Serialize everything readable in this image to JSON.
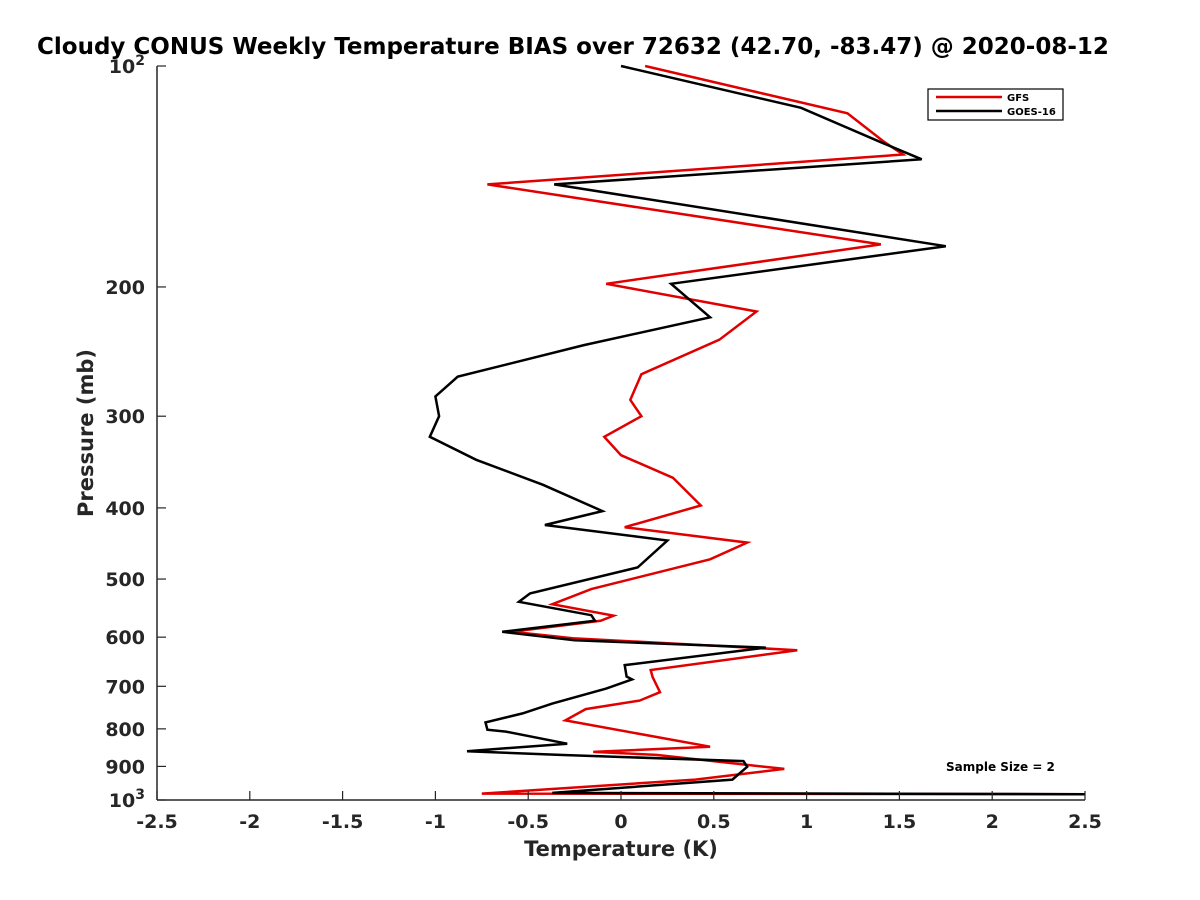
{
  "chart_data": {
    "type": "line",
    "title": "Cloudy CONUS Weekly Temperature BIAS over 72632 (42.70, -83.47) @ 2020-08-12",
    "xlabel": "Temperature (K)",
    "ylabel": "Pressure (mb)",
    "xlim": [
      -2.5,
      2.5
    ],
    "ylim": [
      100,
      1000
    ],
    "y_scale": "log",
    "y_reversed": true,
    "grid": false,
    "legend_position": "top-right",
    "x_ticks": [
      "-2.5",
      "-2",
      "-1.5",
      "-1",
      "-0.5",
      "0",
      "0.5",
      "1",
      "1.5",
      "2",
      "2.5"
    ],
    "y_ticks": [
      {
        "value": 100,
        "label": "10",
        "sup": "2"
      },
      {
        "value": 200,
        "label": "200",
        "sup": ""
      },
      {
        "value": 300,
        "label": "300",
        "sup": ""
      },
      {
        "value": 400,
        "label": "400",
        "sup": ""
      },
      {
        "value": 500,
        "label": "500",
        "sup": ""
      },
      {
        "value": 600,
        "label": "600",
        "sup": ""
      },
      {
        "value": 700,
        "label": "700",
        "sup": ""
      },
      {
        "value": 800,
        "label": "800",
        "sup": ""
      },
      {
        "value": 900,
        "label": "900",
        "sup": ""
      },
      {
        "value": 1000,
        "label": "10",
        "sup": "3"
      }
    ],
    "series": [
      {
        "name": "GFS",
        "color": "#e00000",
        "points": [
          [
            0.13,
            100
          ],
          [
            1.22,
            116
          ],
          [
            1.42,
            127
          ],
          [
            1.52,
            132
          ],
          [
            -0.72,
            145
          ],
          [
            1.4,
            175
          ],
          [
            -0.08,
            198
          ],
          [
            0.73,
            216
          ],
          [
            0.53,
            236
          ],
          [
            0.11,
            263
          ],
          [
            0.05,
            285
          ],
          [
            0.11,
            300
          ],
          [
            -0.09,
            320
          ],
          [
            0.0,
            339
          ],
          [
            0.28,
            364
          ],
          [
            0.43,
            397
          ],
          [
            0.02,
            425
          ],
          [
            0.68,
            446
          ],
          [
            0.48,
            470
          ],
          [
            -0.16,
            516
          ],
          [
            -0.37,
            541
          ],
          [
            -0.04,
            561
          ],
          [
            -0.11,
            570
          ],
          [
            -0.59,
            590
          ],
          [
            -0.26,
            602
          ],
          [
            0.95,
            625
          ],
          [
            0.16,
            665
          ],
          [
            0.17,
            680
          ],
          [
            0.21,
            713
          ],
          [
            0.1,
            732
          ],
          [
            -0.19,
            752
          ],
          [
            -0.3,
            779
          ],
          [
            0.48,
            846
          ],
          [
            -0.15,
            860
          ],
          [
            0.19,
            868
          ],
          [
            0.88,
            907
          ],
          [
            0.4,
            938
          ],
          [
            -0.75,
            980
          ],
          [
            2.5,
            982
          ]
        ]
      },
      {
        "name": "GOES-16",
        "color": "#000000",
        "points": [
          [
            0.0,
            100
          ],
          [
            0.97,
            114
          ],
          [
            1.4,
            127
          ],
          [
            1.62,
            134
          ],
          [
            -0.36,
            145
          ],
          [
            1.75,
            176
          ],
          [
            0.27,
            198
          ],
          [
            0.48,
            220
          ],
          [
            -0.2,
            240
          ],
          [
            -0.88,
            265
          ],
          [
            -1.0,
            282
          ],
          [
            -0.98,
            300
          ],
          [
            -1.03,
            320
          ],
          [
            -0.78,
            344
          ],
          [
            -0.42,
            372
          ],
          [
            -0.1,
            404
          ],
          [
            -0.41,
            422
          ],
          [
            0.25,
            443
          ],
          [
            0.09,
            482
          ],
          [
            -0.49,
            523
          ],
          [
            -0.55,
            537
          ],
          [
            -0.16,
            560
          ],
          [
            -0.14,
            570
          ],
          [
            -0.64,
            590
          ],
          [
            -0.25,
            606
          ],
          [
            0.78,
            620
          ],
          [
            0.02,
            655
          ],
          [
            0.03,
            679
          ],
          [
            0.06,
            685
          ],
          [
            -0.08,
            705
          ],
          [
            -0.37,
            739
          ],
          [
            -0.53,
            762
          ],
          [
            -0.73,
            784
          ],
          [
            -0.72,
            802
          ],
          [
            -0.62,
            807
          ],
          [
            -0.29,
            838
          ],
          [
            -0.83,
            858
          ],
          [
            -0.33,
            868
          ],
          [
            0.66,
            885
          ],
          [
            0.68,
            901
          ],
          [
            0.6,
            938
          ],
          [
            -0.37,
            978
          ],
          [
            2.5,
            982
          ]
        ]
      }
    ],
    "annotations": [
      "Sample Size = 2"
    ]
  }
}
